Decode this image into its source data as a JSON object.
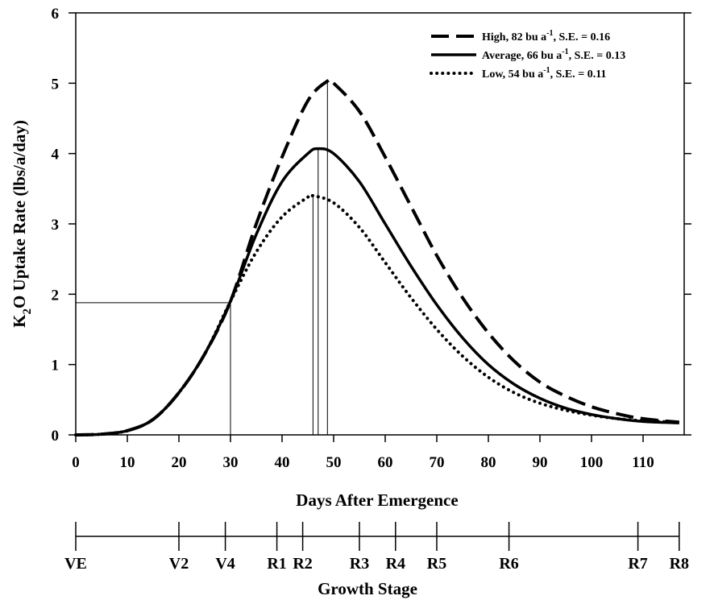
{
  "chart_data": {
    "type": "line",
    "xlabel": "Days After Emergence",
    "ylabel_parts": [
      "K",
      "2",
      "O Uptake Rate (lbs/a/day)"
    ],
    "xlim": [
      0,
      117
    ],
    "ylim": [
      0,
      6
    ],
    "xticks": [
      0,
      10,
      20,
      30,
      40,
      50,
      60,
      70,
      80,
      90,
      100,
      110
    ],
    "yticks": [
      0,
      1,
      2,
      3,
      4,
      5,
      6
    ],
    "legend_position": "top-right",
    "series": [
      {
        "name": "High, 82 bu a-1, S.E. = 0.16",
        "legend_parts": [
          "High, 82 bu a",
          "-1",
          ", S.E. = 0.16"
        ],
        "style": "dashed",
        "peak_day": 48.8,
        "x": [
          0,
          5,
          10,
          15,
          20,
          25,
          30,
          35,
          40,
          45,
          48.8,
          50,
          55,
          60,
          65,
          70,
          75,
          80,
          85,
          90,
          95,
          100,
          105,
          110,
          117
        ],
        "y": [
          0.0,
          0.01,
          0.06,
          0.22,
          0.6,
          1.15,
          1.9,
          3.0,
          3.95,
          4.75,
          5.03,
          5.0,
          4.6,
          3.95,
          3.25,
          2.55,
          1.95,
          1.45,
          1.05,
          0.75,
          0.55,
          0.4,
          0.3,
          0.23,
          0.18
        ]
      },
      {
        "name": "Average, 66 bu a-1, S.E. = 0.13",
        "legend_parts": [
          "Average, 66 bu a",
          "-1",
          ", S.E. = 0.13"
        ],
        "style": "solid",
        "peak_day": 47.0,
        "x": [
          0,
          5,
          10,
          15,
          20,
          25,
          30,
          35,
          40,
          45,
          47,
          50,
          55,
          60,
          65,
          70,
          75,
          80,
          85,
          90,
          95,
          100,
          105,
          110,
          117
        ],
        "y": [
          0.0,
          0.01,
          0.06,
          0.22,
          0.6,
          1.15,
          1.9,
          2.85,
          3.6,
          4.0,
          4.07,
          4.0,
          3.6,
          3.0,
          2.4,
          1.85,
          1.38,
          1.0,
          0.72,
          0.52,
          0.38,
          0.29,
          0.23,
          0.19,
          0.17
        ]
      },
      {
        "name": "Low, 54 bu a-1, S.E. = 0.11",
        "legend_parts": [
          "Low, 54 bu a",
          "-1",
          ", S.E. = 0.11"
        ],
        "style": "dotted",
        "peak_day": 46.0,
        "x": [
          0,
          5,
          10,
          15,
          20,
          25,
          30,
          35,
          40,
          45,
          46,
          50,
          55,
          60,
          65,
          70,
          75,
          80,
          85,
          90,
          95,
          100,
          105,
          110,
          117
        ],
        "y": [
          0.0,
          0.01,
          0.06,
          0.22,
          0.6,
          1.15,
          1.9,
          2.6,
          3.1,
          3.38,
          3.4,
          3.3,
          2.95,
          2.45,
          1.95,
          1.5,
          1.12,
          0.82,
          0.6,
          0.45,
          0.35,
          0.28,
          0.23,
          0.2,
          0.18
        ]
      }
    ],
    "reference_lines": {
      "crossover_day": 30,
      "crossover_value": 1.88
    },
    "growth_stage_axis": {
      "title": "Growth Stage",
      "stages": [
        {
          "label": "VE",
          "day": 0
        },
        {
          "label": "V2",
          "day": 20
        },
        {
          "label": "V4",
          "day": 29
        },
        {
          "label": "R1",
          "day": 39
        },
        {
          "label": "R2",
          "day": 44
        },
        {
          "label": "R3",
          "day": 55
        },
        {
          "label": "R4",
          "day": 62
        },
        {
          "label": "R5",
          "day": 70
        },
        {
          "label": "R6",
          "day": 84
        },
        {
          "label": "R7",
          "day": 109
        },
        {
          "label": "R8",
          "day": 117
        }
      ]
    }
  }
}
